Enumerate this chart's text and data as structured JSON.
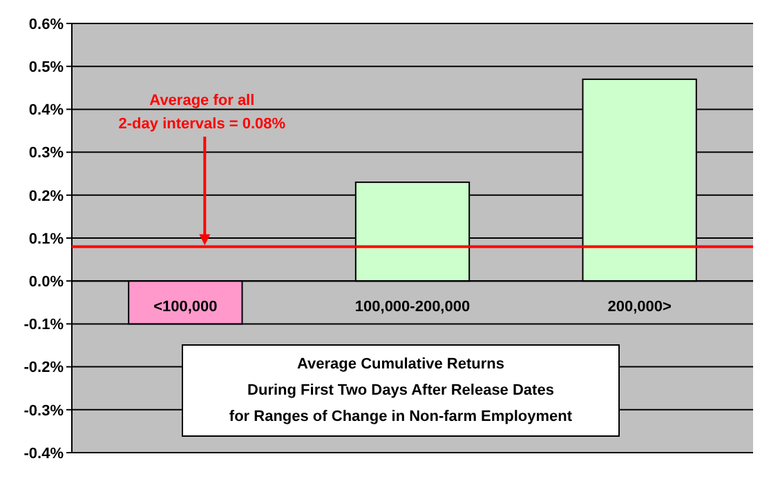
{
  "chart_data": {
    "type": "bar",
    "title": "Average Cumulative Returns\nDuring First Two Days After Release Dates\nfor Ranges of Change in Non-farm Employment",
    "categories": [
      "<100,000",
      "100,000-200,000",
      "200,000>"
    ],
    "values": [
      -0.1,
      0.23,
      0.47
    ],
    "colors": [
      "#ff99cc",
      "#ccffcc",
      "#ccffcc"
    ],
    "ylim": [
      -0.4,
      0.6
    ],
    "yticks": [
      {
        "value": -0.4,
        "label": "-0.4%"
      },
      {
        "value": -0.3,
        "label": "-0.3%"
      },
      {
        "value": -0.2,
        "label": "-0.2%"
      },
      {
        "value": -0.1,
        "label": "-0.1%"
      },
      {
        "value": 0,
        "label": "0.0%"
      },
      {
        "value": 0.1,
        "label": "0.1%"
      },
      {
        "value": 0.2,
        "label": "0.2%"
      },
      {
        "value": 0.3,
        "label": "0.3%"
      },
      {
        "value": 0.4,
        "label": "0.4%"
      },
      {
        "value": 0.5,
        "label": "0.5%"
      },
      {
        "value": 0.6,
        "label": "0.6%"
      }
    ],
    "grid": "y",
    "ref_lines": [
      {
        "axis": "y",
        "value": 0.08,
        "label": "Average for all\n2-day intervals = 0.08%",
        "color": "#ff0000"
      }
    ]
  }
}
